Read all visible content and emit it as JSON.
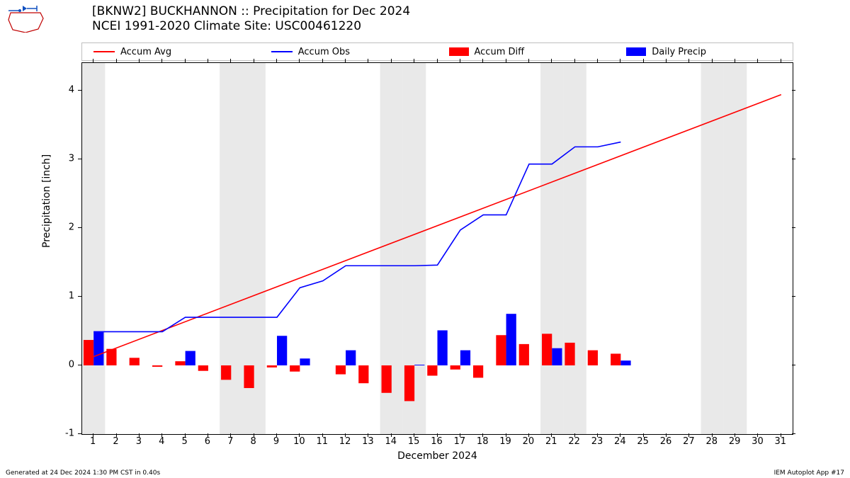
{
  "title": {
    "line1": "[BKNW2] BUCKHANNON :: Precipitation for Dec 2024",
    "line2": "NCEI 1991-2020 Climate Site: USC00461220"
  },
  "legend": {
    "items": [
      {
        "label": "Accum Avg",
        "type": "line",
        "color": "#ff0000"
      },
      {
        "label": "Accum Obs",
        "type": "line",
        "color": "#0000ff"
      },
      {
        "label": "Accum Diff",
        "type": "rect",
        "color": "#ff0000"
      },
      {
        "label": "Daily Precip",
        "type": "rect",
        "color": "#0000ff"
      }
    ]
  },
  "chart": {
    "type": "bar_line_combo",
    "xlim": [
      0.5,
      31.5
    ],
    "ylim": [
      -1.0,
      4.4
    ],
    "xticks": [
      1,
      2,
      3,
      4,
      5,
      6,
      7,
      8,
      9,
      10,
      11,
      12,
      13,
      14,
      15,
      16,
      17,
      18,
      19,
      20,
      21,
      22,
      23,
      24,
      25,
      26,
      27,
      28,
      29,
      30,
      31
    ],
    "yticks": [
      -1,
      0,
      1,
      2,
      3,
      4
    ],
    "xtick_labels": [
      "1",
      "2",
      "3",
      "4",
      "5",
      "6",
      "7",
      "8",
      "9",
      "10",
      "11",
      "12",
      "13",
      "14",
      "15",
      "16",
      "17",
      "18",
      "19",
      "20",
      "21",
      "22",
      "23",
      "24",
      "25",
      "26",
      "27",
      "28",
      "29",
      "30",
      "31"
    ],
    "ytick_labels": [
      "-1",
      "0",
      "1",
      "2",
      "3",
      "4"
    ],
    "xlabel": "December 2024",
    "ylabel": "Precipitation [inch]",
    "background_color": "#ffffff",
    "plot_border_color": "#000000",
    "ytick_fontsize": 13,
    "xtick_fontsize": 13,
    "label_fontsize": 14,
    "title_fontsize": 17,
    "weekend_shade_color": "#e9e9e9",
    "weekend_days": [
      1,
      7,
      8,
      14,
      15,
      21,
      22,
      28,
      29
    ],
    "accum_avg": {
      "color": "#ff0000",
      "linewidth": 1.6,
      "x": [
        1,
        31
      ],
      "y": [
        0.127,
        3.94
      ]
    },
    "accum_obs": {
      "color": "#0000ff",
      "linewidth": 1.6,
      "x": [
        1,
        2,
        3,
        4,
        5,
        6,
        7,
        8,
        9,
        10,
        11,
        12,
        13,
        14,
        15,
        16,
        17,
        18,
        19,
        20,
        21,
        22,
        23,
        24
      ],
      "y": [
        0.49,
        0.49,
        0.49,
        0.49,
        0.7,
        0.7,
        0.7,
        0.7,
        0.7,
        1.13,
        1.23,
        1.45,
        1.45,
        1.45,
        1.45,
        1.46,
        1.97,
        2.19,
        2.19,
        2.93,
        2.93,
        3.18,
        3.18,
        3.25
      ]
    },
    "accum_diff_bars": {
      "color": "#ff0000",
      "bar_width": 0.44,
      "x": [
        1,
        2,
        3,
        4,
        5,
        6,
        7,
        8,
        9,
        10,
        11,
        12,
        13,
        14,
        15,
        16,
        17,
        18,
        19,
        20,
        21,
        22,
        23,
        24
      ],
      "y": [
        0.37,
        0.24,
        0.11,
        -0.02,
        0.06,
        -0.08,
        -0.21,
        -0.33,
        -0.03,
        -0.09,
        0,
        -0.13,
        -0.26,
        -0.4,
        -0.52,
        -0.15,
        -0.06,
        -0.18,
        0.44,
        0.31,
        0.46,
        0.33,
        0.22,
        0.17
      ]
    },
    "daily_precip_bars": {
      "color": "#0000ff",
      "bar_width": 0.44,
      "x": [
        1,
        2,
        5,
        9,
        10,
        12,
        15,
        16,
        17,
        19,
        21,
        24
      ],
      "y": [
        0.49,
        0.0,
        0.21,
        0.43,
        0.1,
        0.22,
        0.01,
        0.51,
        0.22,
        0.75,
        0.25,
        0.07
      ]
    }
  },
  "footer": {
    "left": "Generated at 24 Dec 2024 1:30 PM CST in 0.40s",
    "right": "IEM Autoplot App #17"
  },
  "logo": {
    "name": "iem-logo"
  }
}
